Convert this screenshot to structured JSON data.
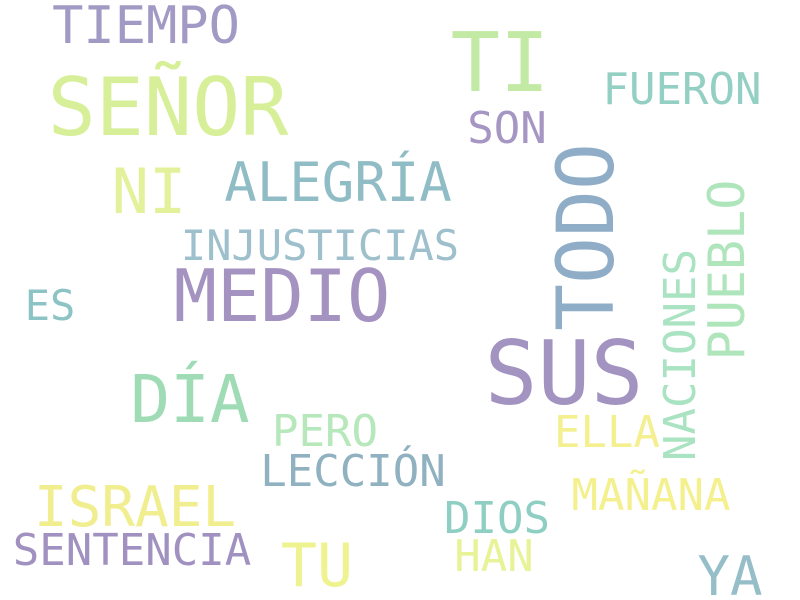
{
  "words": [
    {
      "text": "TIEMPO",
      "color": "#a29ac4"
    },
    {
      "text": "SEÑOR",
      "color": "#d7ef98"
    },
    {
      "text": "TI",
      "color": "#c3eaa4"
    },
    {
      "text": "FUERON",
      "color": "#94cfc3"
    },
    {
      "text": "SON",
      "color": "#a696c4"
    },
    {
      "text": "TODO",
      "color": "#90adc7"
    },
    {
      "text": "NI",
      "color": "#e2f19a"
    },
    {
      "text": "ALEGRÍA",
      "color": "#90bcc6"
    },
    {
      "text": "PUEBLO",
      "color": "#aee5bb"
    },
    {
      "text": "INJUSTICIAS",
      "color": "#9ec0cc"
    },
    {
      "text": "NACIONES",
      "color": "#a9e3c1"
    },
    {
      "text": "MEDIO",
      "color": "#a492c1"
    },
    {
      "text": "ES",
      "color": "#8cc3c5"
    },
    {
      "text": "SUS",
      "color": "#a393c1"
    },
    {
      "text": "DÍA",
      "color": "#9fdcb5"
    },
    {
      "text": "PERO",
      "color": "#b6e8bc"
    },
    {
      "text": "ELLA",
      "color": "#f4ef8f"
    },
    {
      "text": "LECCIÓN",
      "color": "#90b1c0"
    },
    {
      "text": "MAÑANA",
      "color": "#f4f08e"
    },
    {
      "text": "ISRAEL",
      "color": "#f1ee8f"
    },
    {
      "text": "DIOS",
      "color": "#8fcfc3"
    },
    {
      "text": "SENTENCIA",
      "color": "#a091c0"
    },
    {
      "text": "TU",
      "color": "#eef390"
    },
    {
      "text": "HAN",
      "color": "#e8f398"
    },
    {
      "text": "YA",
      "color": "#95bec9"
    }
  ]
}
